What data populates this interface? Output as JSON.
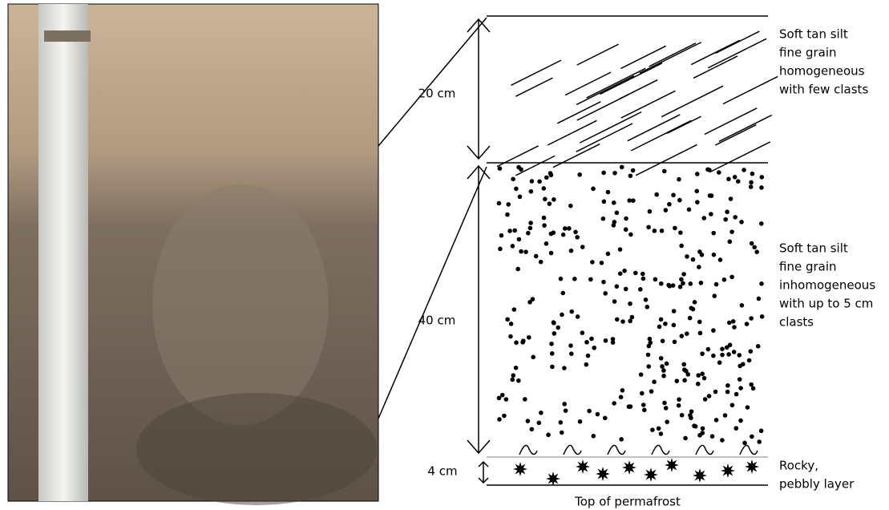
{
  "layers": [
    {
      "thickness": "20 cm",
      "description": [
        "Soft tan silt",
        "fine grain",
        "homogeneous",
        "with few clasts"
      ]
    },
    {
      "thickness": "40 cm",
      "description": [
        "Soft tan silt",
        "fine grain",
        "inhomogeneous",
        "with up to 5 cm",
        "clasts"
      ]
    },
    {
      "thickness": "4 cm",
      "description": [
        "Rocky,",
        "pebbly layer"
      ]
    }
  ],
  "bottom_label": "Top of permafrost"
}
